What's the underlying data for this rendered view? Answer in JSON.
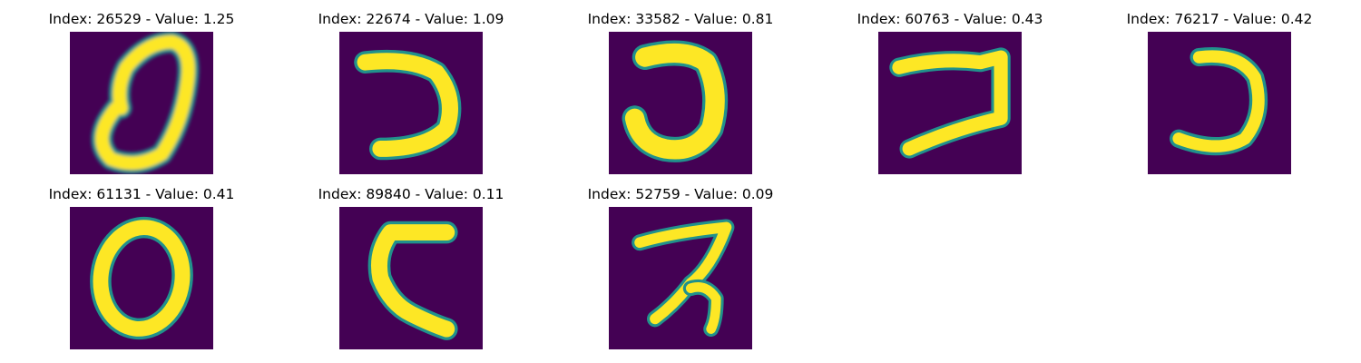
{
  "panels": [
    {
      "title": "Index: 26529 - Value: 1.25",
      "glyph": "slanted-zero-digit"
    },
    {
      "title": "Index: 22674 - Value: 1.09",
      "glyph": "open-left-curve"
    },
    {
      "title": "Index: 33582 - Value: 0.81",
      "glyph": "hook-curve"
    },
    {
      "title": "Index: 60763 - Value: 0.43",
      "glyph": "z-like-stroke"
    },
    {
      "title": "Index: 76217 - Value: 0.42",
      "glyph": "open-left-curve"
    },
    {
      "title": "Index: 61131 - Value: 0.41",
      "glyph": "zero-digit"
    },
    {
      "title": "Index: 89840 - Value: 0.11",
      "glyph": "c-shape"
    },
    {
      "title": "Index: 52759 - Value: 0.09",
      "glyph": "scribble-stroke"
    }
  ],
  "colormap": {
    "background": "#440154",
    "edge": "#21918c",
    "mid": "#5ec962",
    "stroke": "#fde725"
  }
}
